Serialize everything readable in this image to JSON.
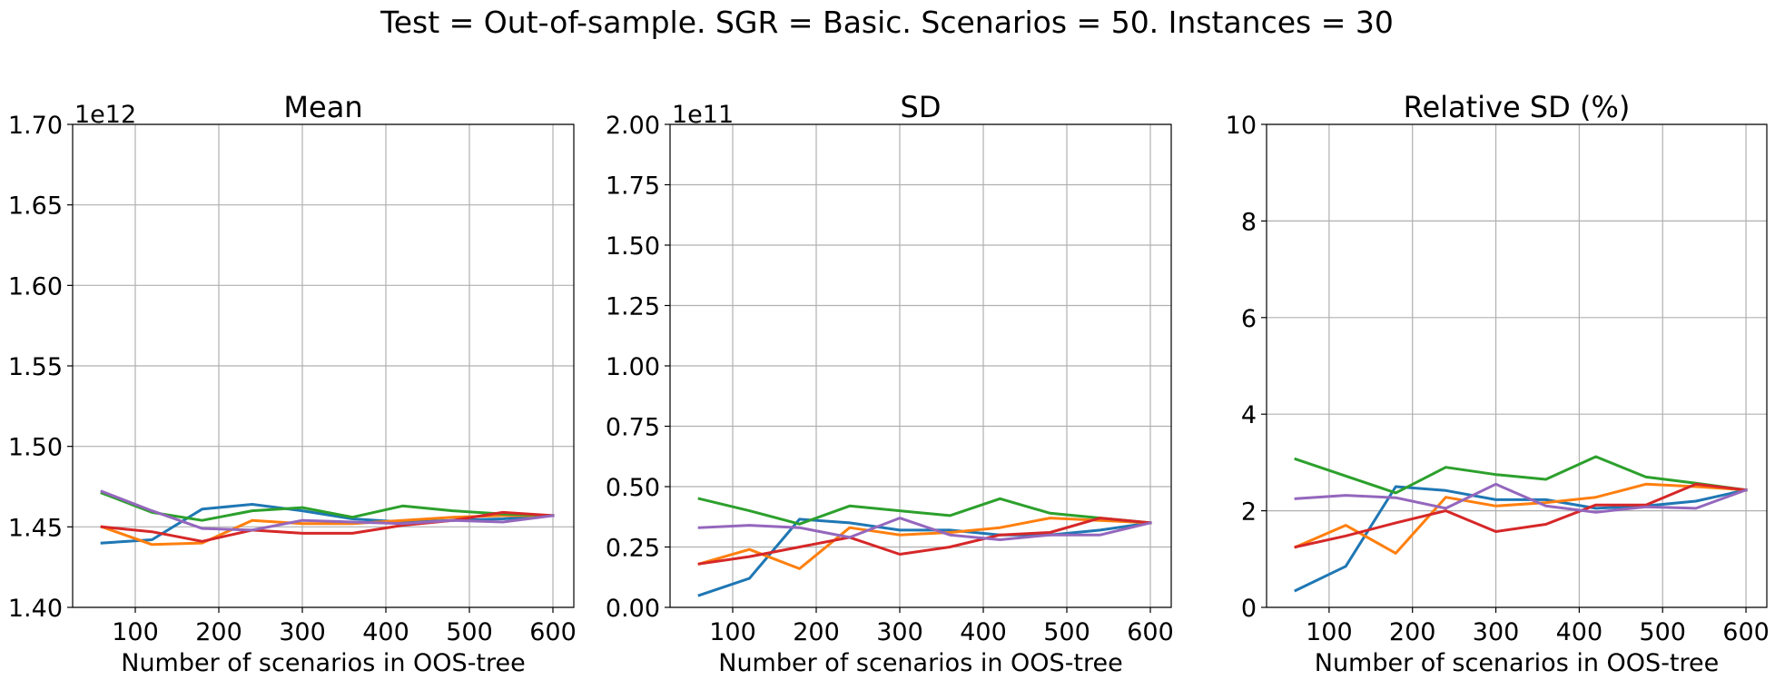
{
  "figure": {
    "suptitle": "Test = Out-of-sample. SGR = Basic. Scenarios = 50. Instances = 30"
  },
  "colors": {
    "series": [
      "#1f77b4",
      "#ff7f0e",
      "#2ca02c",
      "#d62728",
      "#9467bd"
    ],
    "grid": "#b0b0b0"
  },
  "chart_data": [
    {
      "type": "line",
      "title": "Mean",
      "xlabel": "Number of scenarios in OOS-tree",
      "ylabel": "",
      "offset_label": "1e12",
      "grid": true,
      "xlim": [
        25,
        625
      ],
      "ylim": [
        1.4,
        1.7
      ],
      "xticks": [
        100,
        200,
        300,
        400,
        500,
        600
      ],
      "yticks": [
        1.4,
        1.45,
        1.5,
        1.55,
        1.6,
        1.65,
        1.7
      ],
      "ytick_labels": [
        "1.40",
        "1.45",
        "1.50",
        "1.55",
        "1.60",
        "1.65",
        "1.70"
      ],
      "x": [
        60,
        120,
        180,
        240,
        300,
        360,
        420,
        480,
        540,
        600
      ],
      "series": [
        {
          "values": [
            1.44,
            1.442,
            1.461,
            1.464,
            1.46,
            1.455,
            1.453,
            1.454,
            1.455,
            1.457
          ]
        },
        {
          "values": [
            1.45,
            1.439,
            1.44,
            1.454,
            1.452,
            1.452,
            1.454,
            1.456,
            1.457,
            1.457
          ]
        },
        {
          "values": [
            1.471,
            1.459,
            1.454,
            1.46,
            1.462,
            1.456,
            1.463,
            1.46,
            1.458,
            1.457
          ]
        },
        {
          "values": [
            1.45,
            1.447,
            1.441,
            1.448,
            1.446,
            1.446,
            1.451,
            1.454,
            1.459,
            1.457
          ]
        },
        {
          "values": [
            1.472,
            1.46,
            1.449,
            1.448,
            1.454,
            1.453,
            1.452,
            1.454,
            1.453,
            1.457
          ]
        }
      ]
    },
    {
      "type": "line",
      "title": "SD",
      "xlabel": "Number of scenarios in OOS-tree",
      "ylabel": "",
      "offset_label": "1e11",
      "grid": true,
      "xlim": [
        25,
        625
      ],
      "ylim": [
        0.0,
        2.0
      ],
      "xticks": [
        100,
        200,
        300,
        400,
        500,
        600
      ],
      "yticks": [
        0.0,
        0.25,
        0.5,
        0.75,
        1.0,
        1.25,
        1.5,
        1.75,
        2.0
      ],
      "ytick_labels": [
        "0.00",
        "0.25",
        "0.50",
        "0.75",
        "1.00",
        "1.25",
        "1.50",
        "1.75",
        "2.00"
      ],
      "x": [
        60,
        120,
        180,
        240,
        300,
        360,
        420,
        480,
        540,
        600
      ],
      "series": [
        {
          "values": [
            0.05,
            0.12,
            0.365,
            0.35,
            0.32,
            0.32,
            0.3,
            0.3,
            0.32,
            0.35
          ]
        },
        {
          "values": [
            0.18,
            0.24,
            0.16,
            0.33,
            0.3,
            0.31,
            0.33,
            0.37,
            0.36,
            0.35
          ]
        },
        {
          "values": [
            0.45,
            0.4,
            0.345,
            0.42,
            0.4,
            0.38,
            0.45,
            0.39,
            0.37,
            0.35
          ]
        },
        {
          "values": [
            0.18,
            0.21,
            0.25,
            0.29,
            0.22,
            0.25,
            0.3,
            0.31,
            0.37,
            0.35
          ]
        },
        {
          "values": [
            0.33,
            0.34,
            0.33,
            0.29,
            0.37,
            0.3,
            0.28,
            0.3,
            0.3,
            0.35
          ]
        }
      ]
    },
    {
      "type": "line",
      "title": "Relative SD (%)",
      "xlabel": "Number of scenarios in OOS-tree",
      "ylabel": "",
      "offset_label": "",
      "grid": true,
      "xlim": [
        25,
        625
      ],
      "ylim": [
        0,
        10
      ],
      "xticks": [
        100,
        200,
        300,
        400,
        500,
        600
      ],
      "yticks": [
        0,
        2,
        4,
        6,
        8,
        10
      ],
      "ytick_labels": [
        "0",
        "2",
        "4",
        "6",
        "8",
        "10"
      ],
      "x": [
        60,
        120,
        180,
        240,
        300,
        360,
        420,
        480,
        540,
        600
      ],
      "series": [
        {
          "values": [
            0.35,
            0.85,
            2.5,
            2.42,
            2.23,
            2.23,
            2.05,
            2.1,
            2.2,
            2.43
          ]
        },
        {
          "values": [
            1.25,
            1.7,
            1.12,
            2.28,
            2.1,
            2.17,
            2.28,
            2.55,
            2.5,
            2.43
          ]
        },
        {
          "values": [
            3.07,
            2.72,
            2.37,
            2.9,
            2.75,
            2.65,
            3.12,
            2.7,
            2.57,
            2.43
          ]
        },
        {
          "values": [
            1.25,
            1.48,
            1.75,
            2.0,
            1.57,
            1.72,
            2.12,
            2.12,
            2.55,
            2.43
          ]
        },
        {
          "values": [
            2.25,
            2.32,
            2.27,
            2.05,
            2.55,
            2.1,
            1.97,
            2.08,
            2.05,
            2.43
          ]
        }
      ]
    }
  ]
}
